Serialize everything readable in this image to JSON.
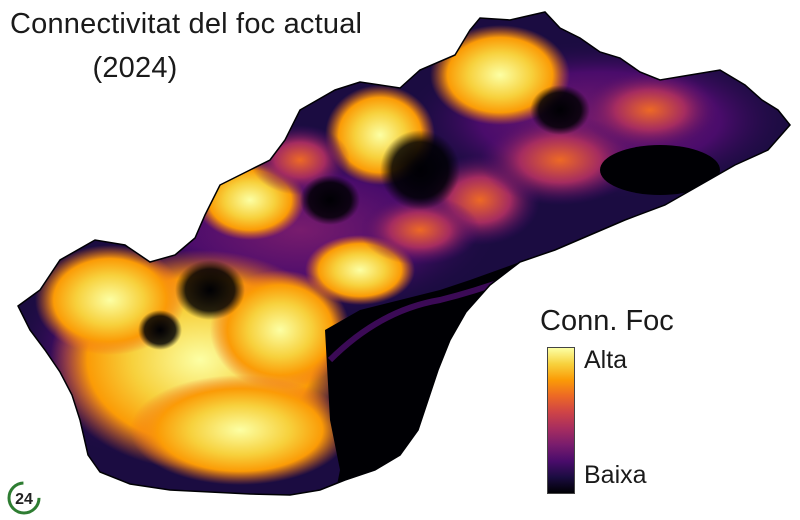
{
  "map": {
    "title_line_1": "Connectivitat del foc actual",
    "title_line_2": "(2024)"
  },
  "legend": {
    "title": "Conn. Foc",
    "high_label": "Alta",
    "low_label": "Baixa",
    "colors": [
      "#000004",
      "#1b0c41",
      "#4a0c6b",
      "#781c6d",
      "#a52c60",
      "#cf4446",
      "#ed6925",
      "#fb9b06",
      "#f7d13d",
      "#fcffa4"
    ]
  },
  "watermark": {
    "text": "24",
    "color": "#2e7d32"
  }
}
